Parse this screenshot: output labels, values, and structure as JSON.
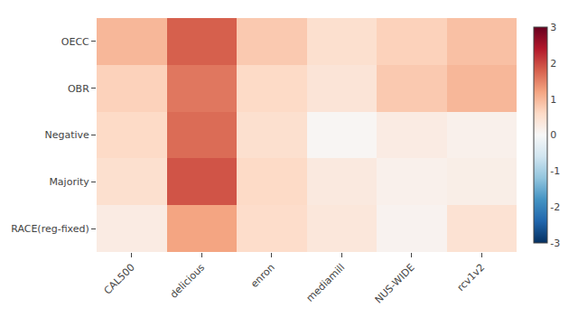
{
  "chart_data": {
    "type": "heatmap",
    "x": [
      "CAL500",
      "delicious",
      "enron",
      "mediamill",
      "NUS-WIDE",
      "rcv1v2"
    ],
    "y": [
      "OECC",
      "OBR",
      "Negative",
      "Majority",
      "RACE(reg-fixed)"
    ],
    "values": [
      [
        1.0,
        1.8,
        0.8,
        0.5,
        0.7,
        0.9
      ],
      [
        0.7,
        1.6,
        0.6,
        0.4,
        0.8,
        1.0
      ],
      [
        0.6,
        1.7,
        0.5,
        0.05,
        0.25,
        0.15
      ],
      [
        0.5,
        1.9,
        0.6,
        0.3,
        0.15,
        0.2
      ],
      [
        0.25,
        1.2,
        0.55,
        0.35,
        0.1,
        0.45
      ]
    ],
    "colorbar_range": [
      -3,
      3
    ],
    "colorbar_ticks": [
      -3,
      -2,
      -1,
      0,
      1,
      2,
      3
    ],
    "color": "RdBu_r",
    "grid": false
  }
}
